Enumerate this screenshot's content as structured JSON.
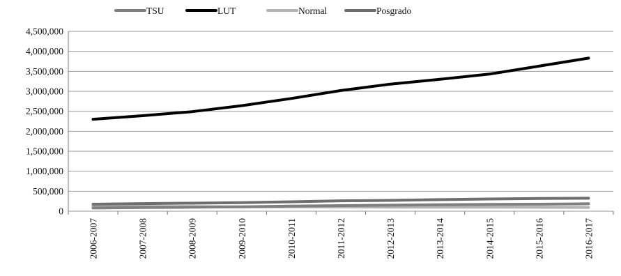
{
  "chart_data": {
    "type": "line",
    "title": "",
    "xlabel": "",
    "ylabel": "",
    "categories": [
      "2006-2007",
      "2007-2008",
      "2008-2009",
      "2009-2010",
      "2010-2011",
      "2011-2012",
      "2012-2013",
      "2013-2014",
      "2014-2015",
      "2015-2016",
      "2016-2017"
    ],
    "ylim": [
      0,
      4500000
    ],
    "yticks": [
      0,
      500000,
      1000000,
      1500000,
      2000000,
      2500000,
      3000000,
      3500000,
      4000000,
      4500000
    ],
    "ytick_labels": [
      "0",
      "500,000",
      "1,000,000",
      "1,500,000",
      "2,000,000",
      "2,500,000",
      "3,000,000",
      "3,500,000",
      "4,000,000",
      "4,500,000"
    ],
    "grid": true,
    "legend": "top",
    "series": [
      {
        "name": "TSU",
        "color": "#7f7f7f",
        "values": [
          80000,
          90000,
          100000,
          110000,
          125000,
          140000,
          150000,
          160000,
          170000,
          175000,
          185000
        ]
      },
      {
        "name": "LUT",
        "color": "#000000",
        "values": [
          2300000,
          2390000,
          2490000,
          2640000,
          2820000,
          3020000,
          3180000,
          3300000,
          3430000,
          3630000,
          3830000
        ]
      },
      {
        "name": "Normal",
        "color": "#b3b3b3",
        "values": [
          120000,
          120000,
          115000,
          110000,
          108000,
          105000,
          102000,
          100000,
          100000,
          98000,
          95000
        ]
      },
      {
        "name": "Posgrado",
        "color": "#6e6e6e",
        "values": [
          175000,
          190000,
          200000,
          215000,
          235000,
          260000,
          270000,
          290000,
          305000,
          320000,
          325000
        ]
      }
    ]
  }
}
